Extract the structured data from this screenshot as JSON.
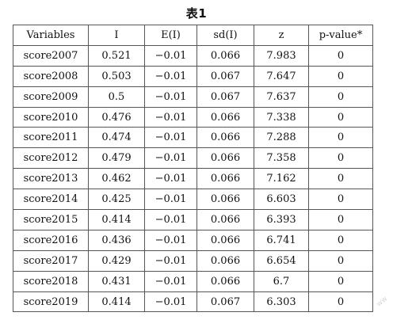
{
  "document": {
    "title": "表1",
    "columns": [
      "Variables",
      "I",
      "E(I)",
      "sd(I)",
      "z",
      "p-value*"
    ],
    "rows": [
      [
        "score2007",
        "0.521",
        "−0.01",
        "0.066",
        "7.983",
        "0"
      ],
      [
        "score2008",
        "0.503",
        "−0.01",
        "0.067",
        "7.647",
        "0"
      ],
      [
        "score2009",
        "0.5",
        "−0.01",
        "0.067",
        "7.637",
        "0"
      ],
      [
        "score2010",
        "0.476",
        "−0.01",
        "0.066",
        "7.338",
        "0"
      ],
      [
        "score2011",
        "0.474",
        "−0.01",
        "0.066",
        "7.288",
        "0"
      ],
      [
        "score2012",
        "0.479",
        "−0.01",
        "0.066",
        "7.358",
        "0"
      ],
      [
        "score2013",
        "0.462",
        "−0.01",
        "0.066",
        "7.162",
        "0"
      ],
      [
        "score2014",
        "0.425",
        "−0.01",
        "0.066",
        "6.603",
        "0"
      ],
      [
        "score2015",
        "0.414",
        "−0.01",
        "0.066",
        "6.393",
        "0"
      ],
      [
        "score2016",
        "0.436",
        "−0.01",
        "0.066",
        "6.741",
        "0"
      ],
      [
        "score2017",
        "0.429",
        "−0.01",
        "0.066",
        "6.654",
        "0"
      ],
      [
        "score2018",
        "0.431",
        "−0.01",
        "0.066",
        "6.7",
        "0"
      ],
      [
        "score2019",
        "0.414",
        "−0.01",
        "0.067",
        "6.303",
        "0"
      ]
    ],
    "watermark": "ww"
  }
}
